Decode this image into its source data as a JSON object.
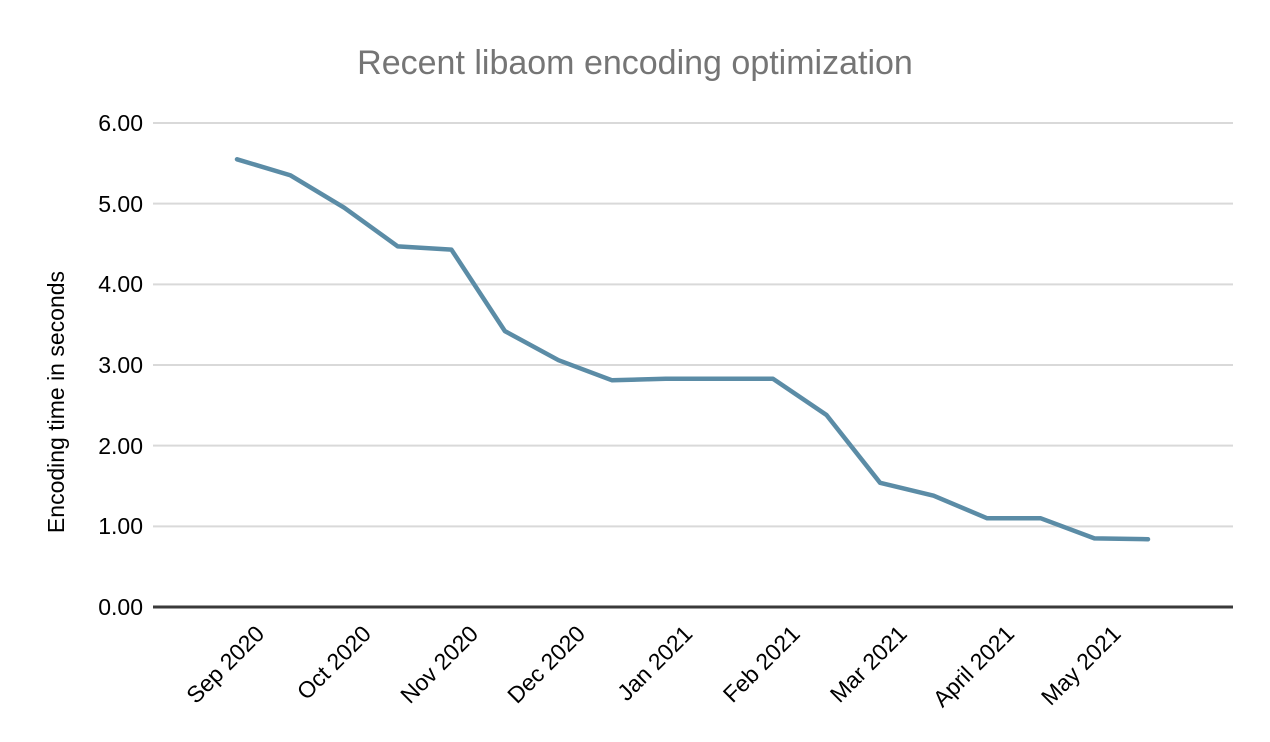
{
  "chart_data": {
    "type": "line",
    "title": "Recent libaom encoding optimization",
    "ylabel": "Encoding time in seconds",
    "xlabel": "",
    "categories": [
      "Sep 2020",
      "Oct 2020",
      "Nov 2020",
      "Dec 2020",
      "Jan 2021",
      "Feb 2021",
      "Mar 2021",
      "April 2021",
      "May 2021"
    ],
    "points_per_month": 2,
    "series": [
      {
        "name": "Encoding time in seconds",
        "values": [
          5.55,
          5.35,
          4.95,
          4.47,
          4.43,
          3.42,
          3.06,
          2.81,
          2.83,
          2.83,
          2.83,
          2.38,
          1.54,
          1.38,
          1.1,
          1.1,
          0.85,
          0.84
        ]
      }
    ],
    "y_ticks": [
      0,
      1,
      2,
      3,
      4,
      5,
      6
    ],
    "y_tick_labels": [
      "0.00",
      "1.00",
      "2.00",
      "3.00",
      "4.00",
      "5.00",
      "6.00"
    ],
    "ylim": [
      0,
      6
    ],
    "grid": true,
    "legend_position": "none",
    "colors": {
      "line": "#5b8ca6",
      "grid": "#d9d9d9",
      "axis": "#3a3a3a",
      "title_text": "#757575",
      "tick_text": "#000000"
    }
  }
}
